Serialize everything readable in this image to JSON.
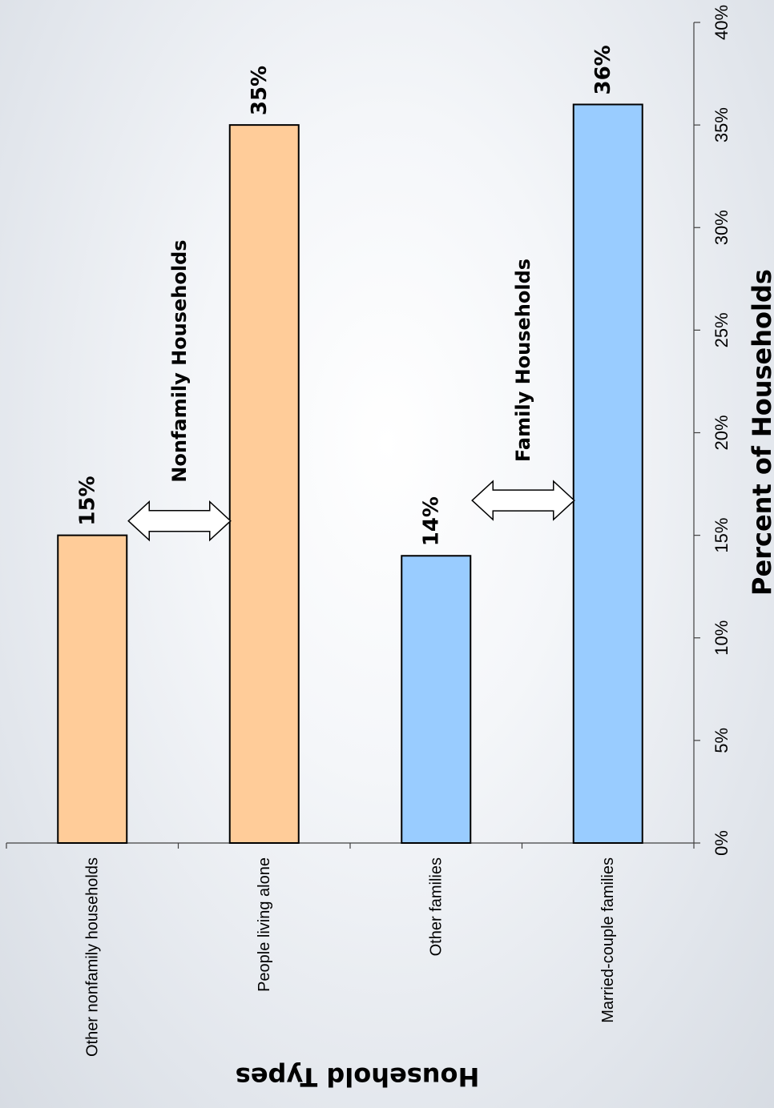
{
  "chart_data": {
    "type": "bar",
    "orientation": "rotated-90-clockwise",
    "categories": [
      "Other nonfamily households",
      "People living alone",
      "Other families",
      "Married-couple families"
    ],
    "values": [
      15,
      35,
      14,
      36
    ],
    "value_labels": [
      "15%",
      "35%",
      "14%",
      "36%"
    ],
    "series_colors": [
      "#FFCC99",
      "#FFCC99",
      "#99CCFF",
      "#99CCFF"
    ],
    "xlabel": "Household Types",
    "ylabel": "Percent of Households",
    "ylim": [
      0,
      40
    ],
    "yticks": [
      0,
      5,
      10,
      15,
      20,
      25,
      30,
      35,
      40
    ],
    "ytick_labels": [
      "0%",
      "5%",
      "10%",
      "15%",
      "20%",
      "25%",
      "30%",
      "35%",
      "40%"
    ],
    "grid": false,
    "annotations": [
      {
        "text": "Nonfamily Households",
        "between": [
          0,
          1
        ],
        "arrow": "double"
      },
      {
        "text": "Family Households",
        "between": [
          2,
          3
        ],
        "arrow": "double"
      }
    ]
  },
  "colors": {
    "nonfamily": "#FFCC99",
    "family": "#99CCFF",
    "bar_stroke": "#000000",
    "axis": "#404040"
  }
}
